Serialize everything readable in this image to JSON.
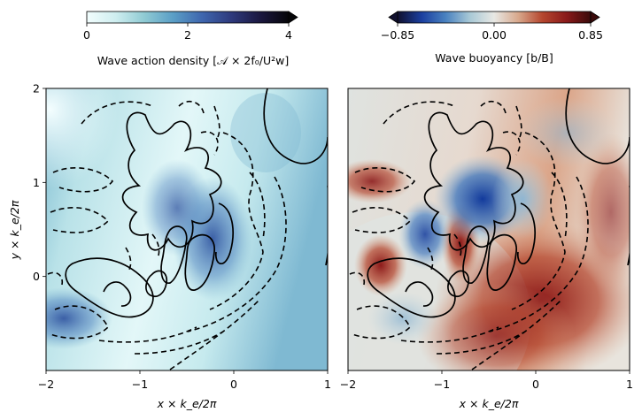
{
  "chart_data": [
    {
      "type": "heatmap",
      "title": "",
      "xlabel": "x × k_e/2π",
      "ylabel": "y × k_e/2π",
      "xlim": [
        -2,
        1
      ],
      "ylim": [
        -1,
        2
      ],
      "xticks": [
        "−2",
        "−1",
        "0",
        "1"
      ],
      "yticks": [
        "0",
        "1",
        "2"
      ],
      "colorbar": {
        "label": "Wave action density [𝒜 × 2f₀/U²w]",
        "range": [
          0,
          4
        ],
        "ticks": [
          "0",
          "2",
          "4"
        ],
        "colors": [
          "#f2fdfd",
          "#cfeef0",
          "#8fcad3",
          "#5a9ec6",
          "#3f66ae",
          "#2e3a7d",
          "#1b1840",
          "#050508"
        ]
      },
      "contours": "solid = positive, dashed = negative"
    },
    {
      "type": "heatmap",
      "title": "",
      "xlabel": "x × k_e/2π",
      "ylabel": "",
      "xlim": [
        -2,
        1
      ],
      "ylim": [
        -1,
        2
      ],
      "xticks": [
        "−2",
        "−1",
        "0",
        "1"
      ],
      "yticks": [],
      "colorbar": {
        "label": "Wave buoyancy [b/B]",
        "range": [
          -0.85,
          0.85
        ],
        "ticks": [
          "−0.85",
          "0.00",
          "0.85"
        ],
        "colors": [
          "#10102e",
          "#1b3fa0",
          "#4a82c0",
          "#a9c9d6",
          "#e8e8e4",
          "#d8a88c",
          "#b5462e",
          "#8a1a1a",
          "#3a0a0a"
        ]
      },
      "contours": "solid = positive, dashed = negative"
    }
  ]
}
